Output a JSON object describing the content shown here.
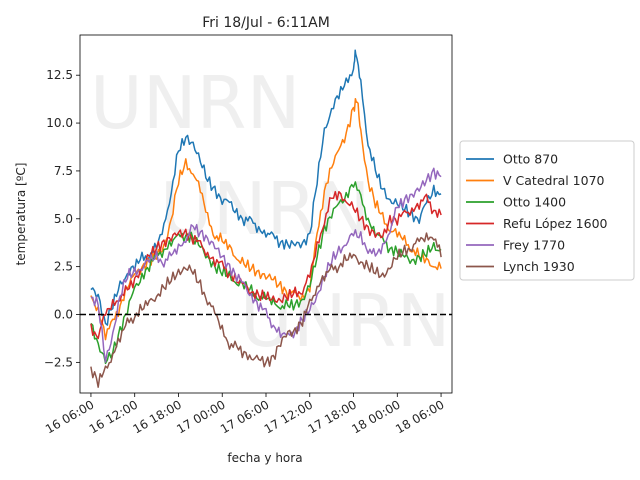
{
  "chart_data": {
    "type": "line",
    "title": "Fri 18/Jul - 6:11AM",
    "xlabel": "fecha y hora",
    "ylabel": "temperatura [ºC]",
    "x_unit": "hours since 16 06:00",
    "xlim": [
      -1.5,
      49.5
    ],
    "ylim": [
      -4.1,
      14.6
    ],
    "x_ticks": [
      {
        "x": 0,
        "label": "16 06:00"
      },
      {
        "x": 6,
        "label": "16 12:00"
      },
      {
        "x": 12,
        "label": "16 18:00"
      },
      {
        "x": 18,
        "label": "17 00:00"
      },
      {
        "x": 24,
        "label": "17 06:00"
      },
      {
        "x": 30,
        "label": "17 12:00"
      },
      {
        "x": 36,
        "label": "17 18:00"
      },
      {
        "x": 42,
        "label": "18 00:00"
      },
      {
        "x": 48,
        "label": "18 06:00"
      }
    ],
    "y_ticks": [
      {
        "y": -2.5,
        "label": "−2.5"
      },
      {
        "y": 0,
        "label": "0.0"
      },
      {
        "y": 2.5,
        "label": "2.5"
      },
      {
        "y": 5,
        "label": "5.0"
      },
      {
        "y": 7.5,
        "label": "7.5"
      },
      {
        "y": 10,
        "label": "10.0"
      },
      {
        "y": 12.5,
        "label": "12.5"
      }
    ],
    "reference_line": {
      "y": 0,
      "style": "dashed",
      "color": "#000000"
    },
    "watermark": [
      "UNRN",
      "UNRN",
      "UNRN"
    ],
    "legend_placement": "right outside",
    "series": [
      {
        "name": "Otto 870",
        "color": "#1f77b4",
        "points": [
          [
            0,
            1.3
          ],
          [
            1,
            1.0
          ],
          [
            2,
            -0.5
          ],
          [
            3,
            0.5
          ],
          [
            4,
            1.5
          ],
          [
            5,
            2.2
          ],
          [
            6,
            2.5
          ],
          [
            7,
            2.9
          ],
          [
            8,
            3.2
          ],
          [
            9,
            3.5
          ],
          [
            10,
            4.5
          ],
          [
            11,
            6.5
          ],
          [
            12,
            8.5
          ],
          [
            13,
            9.2
          ],
          [
            14,
            9.0
          ],
          [
            15,
            8.0
          ],
          [
            16,
            7.0
          ],
          [
            17,
            6.5
          ],
          [
            18,
            6.0
          ],
          [
            19,
            5.8
          ],
          [
            20,
            5.3
          ],
          [
            21,
            5.0
          ],
          [
            22,
            4.8
          ],
          [
            23,
            4.5
          ],
          [
            24,
            4.3
          ],
          [
            25,
            4.0
          ],
          [
            26,
            3.8
          ],
          [
            27,
            3.7
          ],
          [
            28,
            3.6
          ],
          [
            29,
            3.7
          ],
          [
            30,
            4.2
          ],
          [
            31,
            7.0
          ],
          [
            32,
            9.5
          ],
          [
            33,
            10.8
          ],
          [
            34,
            11.5
          ],
          [
            35,
            12.0
          ],
          [
            36,
            13.0
          ],
          [
            36.3,
            13.7
          ],
          [
            37,
            12.0
          ],
          [
            38,
            9.0
          ],
          [
            39,
            7.5
          ],
          [
            40,
            6.5
          ],
          [
            41,
            6.0
          ],
          [
            42,
            5.8
          ],
          [
            43,
            5.5
          ],
          [
            44,
            5.2
          ],
          [
            45,
            5.0
          ],
          [
            46,
            5.8
          ],
          [
            47,
            6.5
          ],
          [
            48,
            6.3
          ]
        ]
      },
      {
        "name": "V Catedral 1070",
        "color": "#ff7f0e",
        "points": [
          [
            0,
            0.8
          ],
          [
            1,
            0.3
          ],
          [
            2,
            -1.0
          ],
          [
            3,
            -0.5
          ],
          [
            4,
            0.5
          ],
          [
            5,
            1.5
          ],
          [
            6,
            2.0
          ],
          [
            7,
            2.5
          ],
          [
            8,
            2.8
          ],
          [
            9,
            3.0
          ],
          [
            10,
            3.5
          ],
          [
            11,
            5.0
          ],
          [
            12,
            7.0
          ],
          [
            13,
            7.8
          ],
          [
            14,
            7.5
          ],
          [
            15,
            6.5
          ],
          [
            16,
            5.0
          ],
          [
            17,
            4.2
          ],
          [
            18,
            3.8
          ],
          [
            19,
            3.5
          ],
          [
            20,
            3.0
          ],
          [
            21,
            2.6
          ],
          [
            22,
            2.4
          ],
          [
            23,
            2.2
          ],
          [
            24,
            2.0
          ],
          [
            25,
            1.8
          ],
          [
            26,
            1.5
          ],
          [
            27,
            1.2
          ],
          [
            28,
            1.0
          ],
          [
            29,
            0.9
          ],
          [
            30,
            1.5
          ],
          [
            31,
            4.0
          ],
          [
            32,
            6.5
          ],
          [
            33,
            7.8
          ],
          [
            34,
            8.5
          ],
          [
            35,
            9.5
          ],
          [
            36,
            10.8
          ],
          [
            36.5,
            11.2
          ],
          [
            37,
            9.5
          ],
          [
            38,
            7.0
          ],
          [
            39,
            5.8
          ],
          [
            40,
            5.0
          ],
          [
            41,
            4.5
          ],
          [
            42,
            4.2
          ],
          [
            43,
            3.8
          ],
          [
            44,
            3.5
          ],
          [
            45,
            3.0
          ],
          [
            46,
            2.8
          ],
          [
            47,
            2.6
          ],
          [
            48,
            2.4
          ]
        ]
      },
      {
        "name": "Otto 1400",
        "color": "#2ca02c",
        "points": [
          [
            0,
            -0.5
          ],
          [
            1,
            -1.5
          ],
          [
            2,
            -2.5
          ],
          [
            3,
            -2.0
          ],
          [
            4,
            -0.8
          ],
          [
            5,
            0.3
          ],
          [
            6,
            1.3
          ],
          [
            7,
            2.0
          ],
          [
            8,
            2.6
          ],
          [
            9,
            3.0
          ],
          [
            10,
            3.4
          ],
          [
            11,
            3.8
          ],
          [
            12,
            4.0
          ],
          [
            13,
            4.2
          ],
          [
            14,
            4.0
          ],
          [
            15,
            3.5
          ],
          [
            16,
            3.0
          ],
          [
            17,
            2.5
          ],
          [
            18,
            2.2
          ],
          [
            19,
            2.0
          ],
          [
            20,
            1.7
          ],
          [
            21,
            1.5
          ],
          [
            22,
            1.2
          ],
          [
            23,
            1.0
          ],
          [
            24,
            0.8
          ],
          [
            25,
            0.6
          ],
          [
            26,
            0.5
          ],
          [
            27,
            0.4
          ],
          [
            28,
            0.5
          ],
          [
            29,
            0.8
          ],
          [
            30,
            1.5
          ],
          [
            31,
            3.0
          ],
          [
            32,
            4.5
          ],
          [
            33,
            5.3
          ],
          [
            34,
            5.7
          ],
          [
            35,
            6.2
          ],
          [
            36,
            7.0
          ],
          [
            37,
            6.0
          ],
          [
            38,
            5.0
          ],
          [
            39,
            4.3
          ],
          [
            40,
            3.8
          ],
          [
            41,
            3.5
          ],
          [
            42,
            3.3
          ],
          [
            43,
            3.0
          ],
          [
            44,
            2.8
          ],
          [
            45,
            3.0
          ],
          [
            46,
            3.2
          ],
          [
            47,
            3.5
          ],
          [
            48,
            3.4
          ]
        ]
      },
      {
        "name": "Refu López 1600",
        "color": "#d62728",
        "points": [
          [
            0,
            -0.8
          ],
          [
            1,
            -1.0
          ],
          [
            2,
            0.0
          ],
          [
            3,
            0.5
          ],
          [
            4,
            1.0
          ],
          [
            5,
            1.2
          ],
          [
            6,
            1.8
          ],
          [
            7,
            2.5
          ],
          [
            8,
            3.0
          ],
          [
            9,
            3.5
          ],
          [
            10,
            3.8
          ],
          [
            11,
            4.0
          ],
          [
            12,
            4.2
          ],
          [
            13,
            4.3
          ],
          [
            14,
            4.0
          ],
          [
            15,
            3.6
          ],
          [
            16,
            3.2
          ],
          [
            17,
            2.8
          ],
          [
            18,
            2.5
          ],
          [
            19,
            2.2
          ],
          [
            20,
            1.8
          ],
          [
            21,
            1.5
          ],
          [
            22,
            1.2
          ],
          [
            23,
            1.0
          ],
          [
            24,
            0.9
          ],
          [
            25,
            0.8
          ],
          [
            26,
            0.8
          ],
          [
            27,
            0.9
          ],
          [
            28,
            1.1
          ],
          [
            29,
            1.3
          ],
          [
            30,
            2.0
          ],
          [
            31,
            3.5
          ],
          [
            32,
            5.0
          ],
          [
            33,
            6.0
          ],
          [
            34,
            6.3
          ],
          [
            35,
            6.0
          ],
          [
            36,
            5.5
          ],
          [
            37,
            5.0
          ],
          [
            38,
            4.5
          ],
          [
            39,
            4.2
          ],
          [
            40,
            4.0
          ],
          [
            41,
            5.0
          ],
          [
            42,
            5.0
          ],
          [
            43,
            5.2
          ],
          [
            44,
            5.5
          ],
          [
            45,
            5.8
          ],
          [
            46,
            6.0
          ],
          [
            47,
            5.5
          ],
          [
            48,
            5.2
          ]
        ]
      },
      {
        "name": "Frey 1770",
        "color": "#9467bd",
        "points": [
          [
            0,
            1.0
          ],
          [
            1,
            0.5
          ],
          [
            2,
            -2.5
          ],
          [
            3,
            -1.0
          ],
          [
            4,
            1.0
          ],
          [
            5,
            2.0
          ],
          [
            6,
            2.2
          ],
          [
            7,
            2.5
          ],
          [
            8,
            2.8
          ],
          [
            9,
            3.0
          ],
          [
            10,
            2.8
          ],
          [
            11,
            3.0
          ],
          [
            12,
            3.5
          ],
          [
            13,
            4.0
          ],
          [
            14,
            4.5
          ],
          [
            15,
            4.3
          ],
          [
            16,
            4.0
          ],
          [
            17,
            3.5
          ],
          [
            18,
            3.0
          ],
          [
            19,
            2.5
          ],
          [
            20,
            2.0
          ],
          [
            21,
            1.5
          ],
          [
            22,
            1.0
          ],
          [
            23,
            0.5
          ],
          [
            24,
            0.0
          ],
          [
            25,
            -0.5
          ],
          [
            26,
            -1.0
          ],
          [
            27,
            -1.2
          ],
          [
            28,
            -0.8
          ],
          [
            29,
            -0.3
          ],
          [
            30,
            0.2
          ],
          [
            31,
            1.0
          ],
          [
            32,
            2.0
          ],
          [
            33,
            2.8
          ],
          [
            34,
            3.3
          ],
          [
            35,
            3.8
          ],
          [
            36,
            4.2
          ],
          [
            37,
            4.0
          ],
          [
            38,
            3.5
          ],
          [
            39,
            3.0
          ],
          [
            40,
            3.5
          ],
          [
            41,
            4.5
          ],
          [
            42,
            5.5
          ],
          [
            43,
            6.0
          ],
          [
            44,
            6.3
          ],
          [
            45,
            6.5
          ],
          [
            46,
            7.0
          ],
          [
            47,
            7.5
          ],
          [
            48,
            7.2
          ]
        ]
      },
      {
        "name": "Lynch 1930",
        "color": "#8c564b",
        "points": [
          [
            0,
            -2.8
          ],
          [
            1,
            -3.5
          ],
          [
            2,
            -3.0
          ],
          [
            3,
            -2.0
          ],
          [
            4,
            -1.2
          ],
          [
            5,
            -0.5
          ],
          [
            6,
            0.0
          ],
          [
            7,
            0.3
          ],
          [
            8,
            0.6
          ],
          [
            9,
            1.0
          ],
          [
            10,
            1.4
          ],
          [
            11,
            1.8
          ],
          [
            12,
            2.2
          ],
          [
            13,
            2.5
          ],
          [
            14,
            2.2
          ],
          [
            15,
            1.5
          ],
          [
            16,
            0.8
          ],
          [
            17,
            0.0
          ],
          [
            18,
            -0.8
          ],
          [
            19,
            -1.5
          ],
          [
            20,
            -1.8
          ],
          [
            21,
            -2.0
          ],
          [
            22,
            -2.2
          ],
          [
            23,
            -2.4
          ],
          [
            24,
            -2.5
          ],
          [
            25,
            -2.2
          ],
          [
            26,
            -1.5
          ],
          [
            27,
            -1.0
          ],
          [
            28,
            -0.8
          ],
          [
            29,
            -0.3
          ],
          [
            30,
            0.5
          ],
          [
            31,
            1.5
          ],
          [
            32,
            2.0
          ],
          [
            33,
            2.3
          ],
          [
            34,
            2.6
          ],
          [
            35,
            2.9
          ],
          [
            36,
            3.0
          ],
          [
            37,
            2.8
          ],
          [
            38,
            2.5
          ],
          [
            39,
            2.2
          ],
          [
            40,
            2.0
          ],
          [
            41,
            2.5
          ],
          [
            42,
            3.0
          ],
          [
            43,
            3.3
          ],
          [
            44,
            3.6
          ],
          [
            45,
            3.8
          ],
          [
            46,
            4.0
          ],
          [
            47,
            4.2
          ],
          [
            48,
            3.0
          ]
        ]
      }
    ]
  }
}
